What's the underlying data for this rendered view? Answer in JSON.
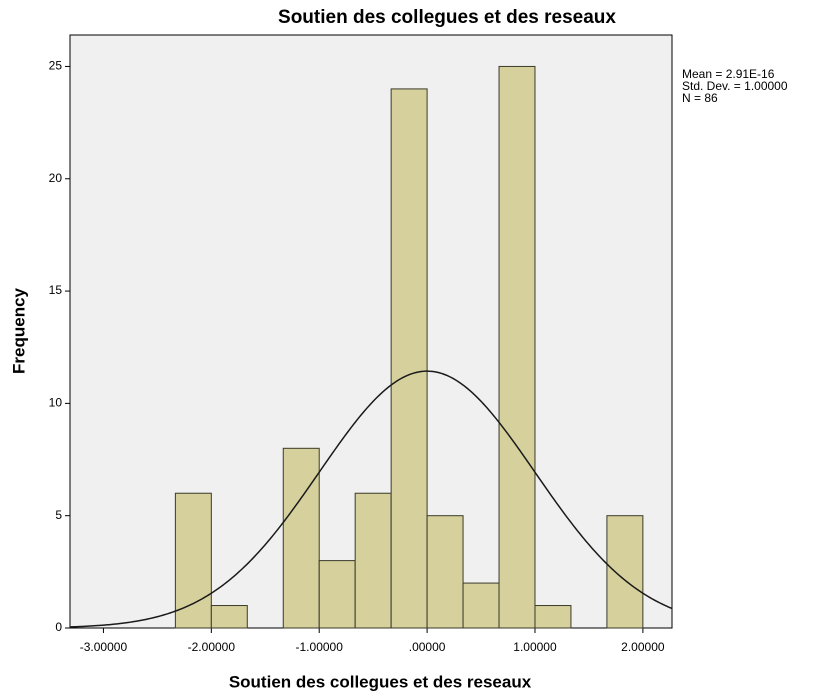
{
  "chart_data": {
    "type": "histogram",
    "title": "Soutien des collegues et des reseaux",
    "x_label": "Soutien des collegues et des reseaux",
    "y_label": "Frequency",
    "bins": [
      -2.3333,
      -2.0,
      -1.6667,
      -1.3333,
      -1.0,
      -0.6667,
      -0.3333,
      0.0,
      0.3333,
      0.6667,
      1.0,
      1.3333,
      1.6667,
      2.0
    ],
    "values": [
      6,
      1,
      0,
      8,
      3,
      6,
      24,
      5,
      2,
      25,
      1,
      0,
      5
    ],
    "color": "#d5d09c",
    "xlim": [
      -3.31,
      2.27
    ],
    "xticks": [
      {
        "value": -3,
        "label": "-3.00000"
      },
      {
        "value": -2,
        "label": "-2.00000"
      },
      {
        "value": -1,
        "label": "-1.00000"
      },
      {
        "value": 0,
        "label": ".00000"
      },
      {
        "value": 1,
        "label": "1.00000"
      },
      {
        "value": 2,
        "label": "2.00000"
      }
    ],
    "ylim": [
      0,
      26.4
    ],
    "yticks": [
      0,
      5,
      10,
      15,
      20,
      25
    ],
    "normal_curve": true,
    "stats": [
      {
        "value": 2.91e-16,
        "label": "Mean = 2.91E-16"
      },
      {
        "value": 1.0,
        "label": "Std. Dev. = 1.00000"
      },
      {
        "value": 86,
        "label": "N = 86"
      }
    ]
  }
}
